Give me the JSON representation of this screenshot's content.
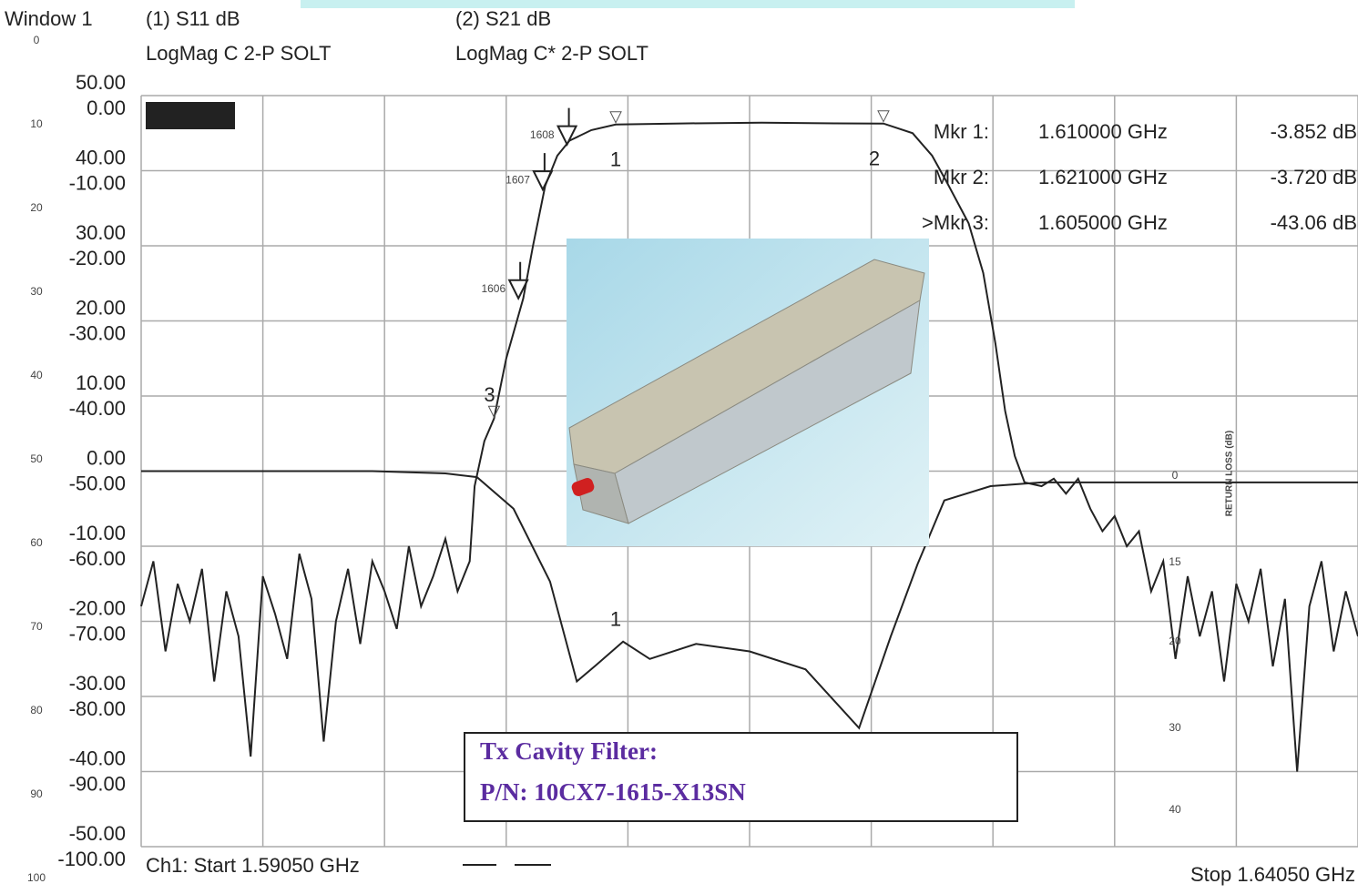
{
  "chart_data": {
    "type": "line",
    "window": "Window 1",
    "traces": [
      {
        "name": "(1) S11 dB",
        "format": "LogMag C  2-P SOLT"
      },
      {
        "name": "(2) S21 dB",
        "format": "LogMag C* 2-P SOLT"
      }
    ],
    "xlim": [
      1.5905,
      1.6405
    ],
    "xticks": [
      1.5905,
      1.5955,
      1.6005,
      1.6055,
      1.6105,
      1.6155,
      1.6205,
      1.6255,
      1.6305,
      1.6355,
      1.6405
    ],
    "ylim": [
      -100,
      0
    ],
    "yticks": [
      {
        "value": 0,
        "label": "0.00"
      },
      {
        "value": -10,
        "label": "-10.00"
      },
      {
        "value": -20,
        "label": "-20.00"
      },
      {
        "value": -30,
        "label": "-30.00"
      },
      {
        "value": -40,
        "label": "-40.00"
      },
      {
        "value": -50,
        "label": "-50.00"
      },
      {
        "value": -60,
        "label": "-60.00"
      },
      {
        "value": -70,
        "label": "-70.00"
      },
      {
        "value": -80,
        "label": "-80.00"
      },
      {
        "value": -90,
        "label": "-90.00"
      },
      {
        "value": -100,
        "label": "-100.00"
      }
    ],
    "y2lim": [
      -50,
      50
    ],
    "y2ticks": [
      {
        "value": 50,
        "label": "50.00"
      },
      {
        "value": 40,
        "label": "40.00"
      },
      {
        "value": 30,
        "label": "30.00"
      },
      {
        "value": 20,
        "label": "20.00"
      },
      {
        "value": 10,
        "label": "10.00"
      },
      {
        "value": 0,
        "label": "0.00"
      },
      {
        "value": -10,
        "label": "-10.00"
      },
      {
        "value": -20,
        "label": "-20.00"
      },
      {
        "value": -30,
        "label": "-30.00"
      },
      {
        "value": -40,
        "label": "-40.00"
      },
      {
        "value": -50,
        "label": "-50.00"
      }
    ],
    "paper_scale": [
      "0",
      "10",
      "20",
      "30",
      "40",
      "50",
      "60",
      "70",
      "80",
      "90",
      "100"
    ],
    "return_loss_axis": {
      "label": "RETURN LOSS (dB)",
      "ticks": [
        "0",
        "15",
        "20",
        "30",
        "40"
      ]
    },
    "grid": true,
    "series": [
      {
        "name": "S11",
        "axis": "y2",
        "color": "#222222",
        "x": [
          1.5905,
          1.6,
          1.603,
          1.6043,
          1.6058,
          1.6073,
          1.6084,
          1.6092,
          1.6103,
          1.6114,
          1.6133,
          1.6155,
          1.6178,
          1.62,
          1.6213,
          1.6224,
          1.6235,
          1.6254,
          1.6275,
          1.631,
          1.6405
        ],
        "values": [
          0,
          0,
          -0.3,
          -0.8,
          -5,
          -14.7,
          -28,
          -25.8,
          -22.7,
          -25,
          -23,
          -24,
          -26.4,
          -34.2,
          -22,
          -12.4,
          -3.9,
          -2,
          -1.5,
          -1.5,
          -1.5
        ]
      },
      {
        "name": "S21",
        "color": "#222222",
        "x": [
          1.5905,
          1.591,
          1.5915,
          1.592,
          1.5925,
          1.593,
          1.5935,
          1.594,
          1.5945,
          1.595,
          1.5955,
          1.596,
          1.5965,
          1.597,
          1.5975,
          1.598,
          1.5985,
          1.599,
          1.5995,
          1.6,
          1.6005,
          1.601,
          1.6015,
          1.602,
          1.6025,
          1.603,
          1.6035,
          1.604,
          1.6042,
          1.6046,
          1.605,
          1.6055,
          1.6062,
          1.6066,
          1.6071,
          1.6076,
          1.6081,
          1.609,
          1.61,
          1.613,
          1.616,
          1.619,
          1.621,
          1.6222,
          1.623,
          1.6236,
          1.6245,
          1.6251,
          1.6256,
          1.626,
          1.6264,
          1.6268,
          1.6275,
          1.628,
          1.6285,
          1.629,
          1.6295,
          1.63,
          1.6305,
          1.631,
          1.6315,
          1.632,
          1.6325,
          1.633,
          1.6335,
          1.634,
          1.6345,
          1.635,
          1.6355,
          1.636,
          1.6365,
          1.637,
          1.6375,
          1.638,
          1.6385,
          1.639,
          1.6395,
          1.64,
          1.6405
        ],
        "values": [
          -68,
          -62,
          -74,
          -65,
          -70,
          -63,
          -78,
          -66,
          -72,
          -88,
          -64,
          -69,
          -75,
          -61,
          -67,
          -86,
          -70,
          -63,
          -73,
          -62,
          -66,
          -71,
          -60,
          -68,
          -64,
          -59,
          -66,
          -62,
          -52,
          -46,
          -43,
          -35,
          -27,
          -20,
          -12,
          -8,
          -6,
          -4.6,
          -3.85,
          -3.7,
          -3.6,
          -3.7,
          -3.72,
          -5,
          -8,
          -11.5,
          -17,
          -23.6,
          -33,
          -42,
          -48,
          -51.5,
          -52,
          -51,
          -53,
          -51,
          -55,
          -58,
          -56,
          -60,
          -58,
          -66,
          -62,
          -75,
          -64,
          -72,
          -66,
          -78,
          -65,
          -70,
          -63,
          -76,
          -67,
          -90,
          -68,
          -62,
          -74,
          -66,
          -72
        ]
      }
    ],
    "markers": [
      {
        "id": "1",
        "name": "Mkr 1:",
        "x": 1.61,
        "x_label": "1.610000 GHz",
        "value": -3.852,
        "value_label": "-3.852 dB"
      },
      {
        "id": "2",
        "name": "Mkr 2:",
        "x": 1.621,
        "x_label": "1.621000 GHz",
        "value": -3.72,
        "value_label": "-3.720 dB"
      },
      {
        "id": "3",
        "name": ">Mkr 3:",
        "x": 1.605,
        "x_label": "1.605000 GHz",
        "value": -43.06,
        "value_label": "-43.06 dB"
      }
    ],
    "ref_markers": [
      {
        "label": "1608",
        "x": 1.608,
        "value": -6.5
      },
      {
        "label": "1607",
        "x": 1.607,
        "value": -12.5
      },
      {
        "label": "1606",
        "x": 1.606,
        "value": -27
      }
    ],
    "s11_marker_label": "1",
    "start_label": "Ch1: Start  1.59050 GHz",
    "stop_label": "Stop  1.64050 GHz",
    "annotation": [
      "Tx Cavity Filter:",
      "P/N: 10CX7-1615-X13SN"
    ]
  }
}
